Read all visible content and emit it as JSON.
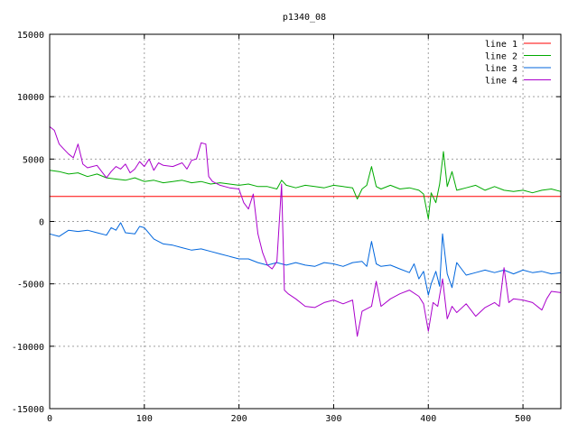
{
  "chart_data": {
    "type": "line",
    "title": "p1340_08",
    "xlabel": "",
    "ylabel": "",
    "xlim": [
      0,
      540
    ],
    "ylim": [
      -15000,
      15000
    ],
    "xticks": [
      0,
      100,
      200,
      300,
      400,
      500
    ],
    "yticks": [
      -15000,
      -10000,
      -5000,
      0,
      5000,
      10000,
      15000
    ],
    "grid": true,
    "legend_position": "top-right",
    "series": [
      {
        "name": "line 1",
        "color": "#ff0000",
        "points": [
          [
            0,
            2000
          ],
          [
            540,
            2000
          ]
        ]
      },
      {
        "name": "line 2",
        "color": "#00aa00",
        "points": [
          [
            0,
            4100
          ],
          [
            10,
            4000
          ],
          [
            20,
            3800
          ],
          [
            30,
            3900
          ],
          [
            40,
            3600
          ],
          [
            50,
            3800
          ],
          [
            60,
            3500
          ],
          [
            70,
            3400
          ],
          [
            80,
            3300
          ],
          [
            90,
            3500
          ],
          [
            100,
            3200
          ],
          [
            110,
            3300
          ],
          [
            120,
            3100
          ],
          [
            130,
            3200
          ],
          [
            140,
            3300
          ],
          [
            150,
            3100
          ],
          [
            160,
            3200
          ],
          [
            170,
            3000
          ],
          [
            180,
            3100
          ],
          [
            190,
            3000
          ],
          [
            200,
            2900
          ],
          [
            210,
            3000
          ],
          [
            220,
            2800
          ],
          [
            230,
            2800
          ],
          [
            240,
            2600
          ],
          [
            245,
            3300
          ],
          [
            250,
            2900
          ],
          [
            260,
            2700
          ],
          [
            270,
            2900
          ],
          [
            280,
            2800
          ],
          [
            290,
            2700
          ],
          [
            300,
            2900
          ],
          [
            310,
            2800
          ],
          [
            320,
            2700
          ],
          [
            325,
            1800
          ],
          [
            330,
            2600
          ],
          [
            335,
            2900
          ],
          [
            340,
            4400
          ],
          [
            345,
            2800
          ],
          [
            350,
            2600
          ],
          [
            360,
            2900
          ],
          [
            370,
            2600
          ],
          [
            380,
            2700
          ],
          [
            390,
            2500
          ],
          [
            395,
            2200
          ],
          [
            400,
            200
          ],
          [
            403,
            2300
          ],
          [
            408,
            1500
          ],
          [
            412,
            3000
          ],
          [
            416,
            5600
          ],
          [
            420,
            2800
          ],
          [
            425,
            4000
          ],
          [
            430,
            2500
          ],
          [
            440,
            2700
          ],
          [
            450,
            2900
          ],
          [
            460,
            2500
          ],
          [
            470,
            2800
          ],
          [
            480,
            2500
          ],
          [
            490,
            2400
          ],
          [
            500,
            2500
          ],
          [
            510,
            2300
          ],
          [
            520,
            2500
          ],
          [
            530,
            2600
          ],
          [
            540,
            2400
          ]
        ]
      },
      {
        "name": "line 3",
        "color": "#0066dd",
        "points": [
          [
            0,
            -1000
          ],
          [
            10,
            -1200
          ],
          [
            20,
            -700
          ],
          [
            30,
            -800
          ],
          [
            40,
            -700
          ],
          [
            50,
            -900
          ],
          [
            60,
            -1100
          ],
          [
            65,
            -500
          ],
          [
            70,
            -700
          ],
          [
            75,
            -100
          ],
          [
            80,
            -900
          ],
          [
            90,
            -1000
          ],
          [
            95,
            -400
          ],
          [
            100,
            -500
          ],
          [
            110,
            -1400
          ],
          [
            120,
            -1800
          ],
          [
            130,
            -1900
          ],
          [
            140,
            -2100
          ],
          [
            150,
            -2300
          ],
          [
            160,
            -2200
          ],
          [
            170,
            -2400
          ],
          [
            180,
            -2600
          ],
          [
            190,
            -2800
          ],
          [
            200,
            -3000
          ],
          [
            210,
            -3000
          ],
          [
            220,
            -3300
          ],
          [
            230,
            -3500
          ],
          [
            240,
            -3300
          ],
          [
            250,
            -3500
          ],
          [
            260,
            -3300
          ],
          [
            270,
            -3500
          ],
          [
            280,
            -3600
          ],
          [
            290,
            -3300
          ],
          [
            300,
            -3400
          ],
          [
            310,
            -3600
          ],
          [
            320,
            -3300
          ],
          [
            330,
            -3200
          ],
          [
            335,
            -3600
          ],
          [
            340,
            -1600
          ],
          [
            345,
            -3400
          ],
          [
            350,
            -3600
          ],
          [
            360,
            -3500
          ],
          [
            370,
            -3800
          ],
          [
            380,
            -4100
          ],
          [
            385,
            -3400
          ],
          [
            390,
            -4600
          ],
          [
            395,
            -4000
          ],
          [
            400,
            -5900
          ],
          [
            403,
            -5000
          ],
          [
            408,
            -4000
          ],
          [
            412,
            -5200
          ],
          [
            415,
            -1000
          ],
          [
            420,
            -4200
          ],
          [
            425,
            -5300
          ],
          [
            430,
            -3300
          ],
          [
            440,
            -4300
          ],
          [
            450,
            -4100
          ],
          [
            460,
            -3900
          ],
          [
            470,
            -4100
          ],
          [
            480,
            -3900
          ],
          [
            490,
            -4200
          ],
          [
            500,
            -3900
          ],
          [
            510,
            -4100
          ],
          [
            520,
            -4000
          ],
          [
            530,
            -4200
          ],
          [
            540,
            -4100
          ]
        ]
      },
      {
        "name": "line 4",
        "color": "#aa00cc",
        "points": [
          [
            0,
            7600
          ],
          [
            5,
            7300
          ],
          [
            10,
            6200
          ],
          [
            15,
            5800
          ],
          [
            20,
            5400
          ],
          [
            25,
            5100
          ],
          [
            30,
            6200
          ],
          [
            35,
            4600
          ],
          [
            40,
            4300
          ],
          [
            45,
            4400
          ],
          [
            50,
            4500
          ],
          [
            55,
            4000
          ],
          [
            60,
            3500
          ],
          [
            65,
            4000
          ],
          [
            70,
            4400
          ],
          [
            75,
            4200
          ],
          [
            80,
            4600
          ],
          [
            85,
            3900
          ],
          [
            90,
            4200
          ],
          [
            95,
            4800
          ],
          [
            100,
            4400
          ],
          [
            105,
            5000
          ],
          [
            110,
            4100
          ],
          [
            115,
            4700
          ],
          [
            120,
            4500
          ],
          [
            130,
            4400
          ],
          [
            140,
            4700
          ],
          [
            145,
            4200
          ],
          [
            150,
            4900
          ],
          [
            155,
            5000
          ],
          [
            160,
            6300
          ],
          [
            165,
            6200
          ],
          [
            168,
            3600
          ],
          [
            172,
            3200
          ],
          [
            180,
            2900
          ],
          [
            190,
            2700
          ],
          [
            200,
            2600
          ],
          [
            205,
            1500
          ],
          [
            210,
            1000
          ],
          [
            215,
            2200
          ],
          [
            220,
            -1000
          ],
          [
            225,
            -2500
          ],
          [
            230,
            -3500
          ],
          [
            235,
            -3800
          ],
          [
            240,
            -3200
          ],
          [
            245,
            3000
          ],
          [
            248,
            -5500
          ],
          [
            252,
            -5800
          ],
          [
            260,
            -6200
          ],
          [
            270,
            -6800
          ],
          [
            280,
            -6900
          ],
          [
            290,
            -6500
          ],
          [
            300,
            -6300
          ],
          [
            310,
            -6600
          ],
          [
            320,
            -6300
          ],
          [
            325,
            -9200
          ],
          [
            330,
            -7200
          ],
          [
            340,
            -6800
          ],
          [
            345,
            -4800
          ],
          [
            350,
            -6800
          ],
          [
            360,
            -6200
          ],
          [
            370,
            -5800
          ],
          [
            380,
            -5500
          ],
          [
            390,
            -6000
          ],
          [
            395,
            -6600
          ],
          [
            400,
            -8800
          ],
          [
            405,
            -6500
          ],
          [
            410,
            -6800
          ],
          [
            415,
            -4600
          ],
          [
            420,
            -7800
          ],
          [
            425,
            -6800
          ],
          [
            430,
            -7300
          ],
          [
            440,
            -6600
          ],
          [
            450,
            -7600
          ],
          [
            460,
            -6900
          ],
          [
            470,
            -6500
          ],
          [
            475,
            -6800
          ],
          [
            480,
            -3700
          ],
          [
            485,
            -6500
          ],
          [
            490,
            -6200
          ],
          [
            500,
            -6300
          ],
          [
            510,
            -6500
          ],
          [
            520,
            -7100
          ],
          [
            525,
            -6200
          ],
          [
            530,
            -5600
          ],
          [
            540,
            -5700
          ]
        ]
      }
    ]
  }
}
